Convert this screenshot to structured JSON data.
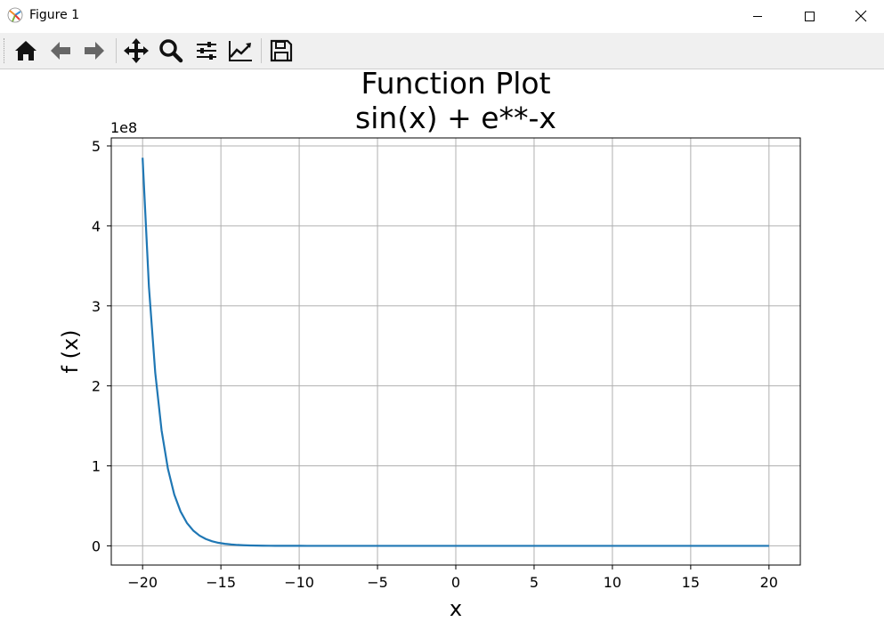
{
  "window": {
    "title": "Figure 1",
    "icons": [
      "matplotlib-logo-icon",
      "minimize-icon",
      "maximize-icon",
      "close-icon"
    ]
  },
  "toolbar": {
    "buttons": [
      {
        "name": "home-icon",
        "tooltip": "Home"
      },
      {
        "name": "back-icon",
        "tooltip": "Back"
      },
      {
        "name": "forward-icon",
        "tooltip": "Forward"
      },
      {
        "name": "pan-icon",
        "tooltip": "Pan"
      },
      {
        "name": "zoom-icon",
        "tooltip": "Zoom"
      },
      {
        "name": "subplots-icon",
        "tooltip": "Subplots"
      },
      {
        "name": "customize-icon",
        "tooltip": "Customize"
      },
      {
        "name": "save-icon",
        "tooltip": "Save"
      }
    ]
  },
  "chart_data": {
    "type": "line",
    "title_lines": [
      "Function Plot",
      "sin(x) + e**-x"
    ],
    "xlabel": "x",
    "ylabel": "f (x)",
    "y_offset_text": "1e8",
    "xlim": [
      -22,
      22
    ],
    "ylim": [
      -0.24,
      5.1
    ],
    "xticks": [
      -20,
      -15,
      -10,
      -5,
      0,
      5,
      10,
      15,
      20
    ],
    "xtick_labels": [
      "−20",
      "−15",
      "−10",
      "−5",
      "0",
      "5",
      "10",
      "15",
      "20"
    ],
    "yticks": [
      0,
      1,
      2,
      3,
      4,
      5
    ],
    "ytick_labels": [
      "0",
      "1",
      "2",
      "3",
      "4",
      "5"
    ],
    "grid": true,
    "series": [
      {
        "color": "#1f77b4",
        "x_range": [
          -20,
          20
        ],
        "num_points": 100,
        "function": "sin(x) + e**-x",
        "y_scale": 100000000.0
      }
    ]
  }
}
